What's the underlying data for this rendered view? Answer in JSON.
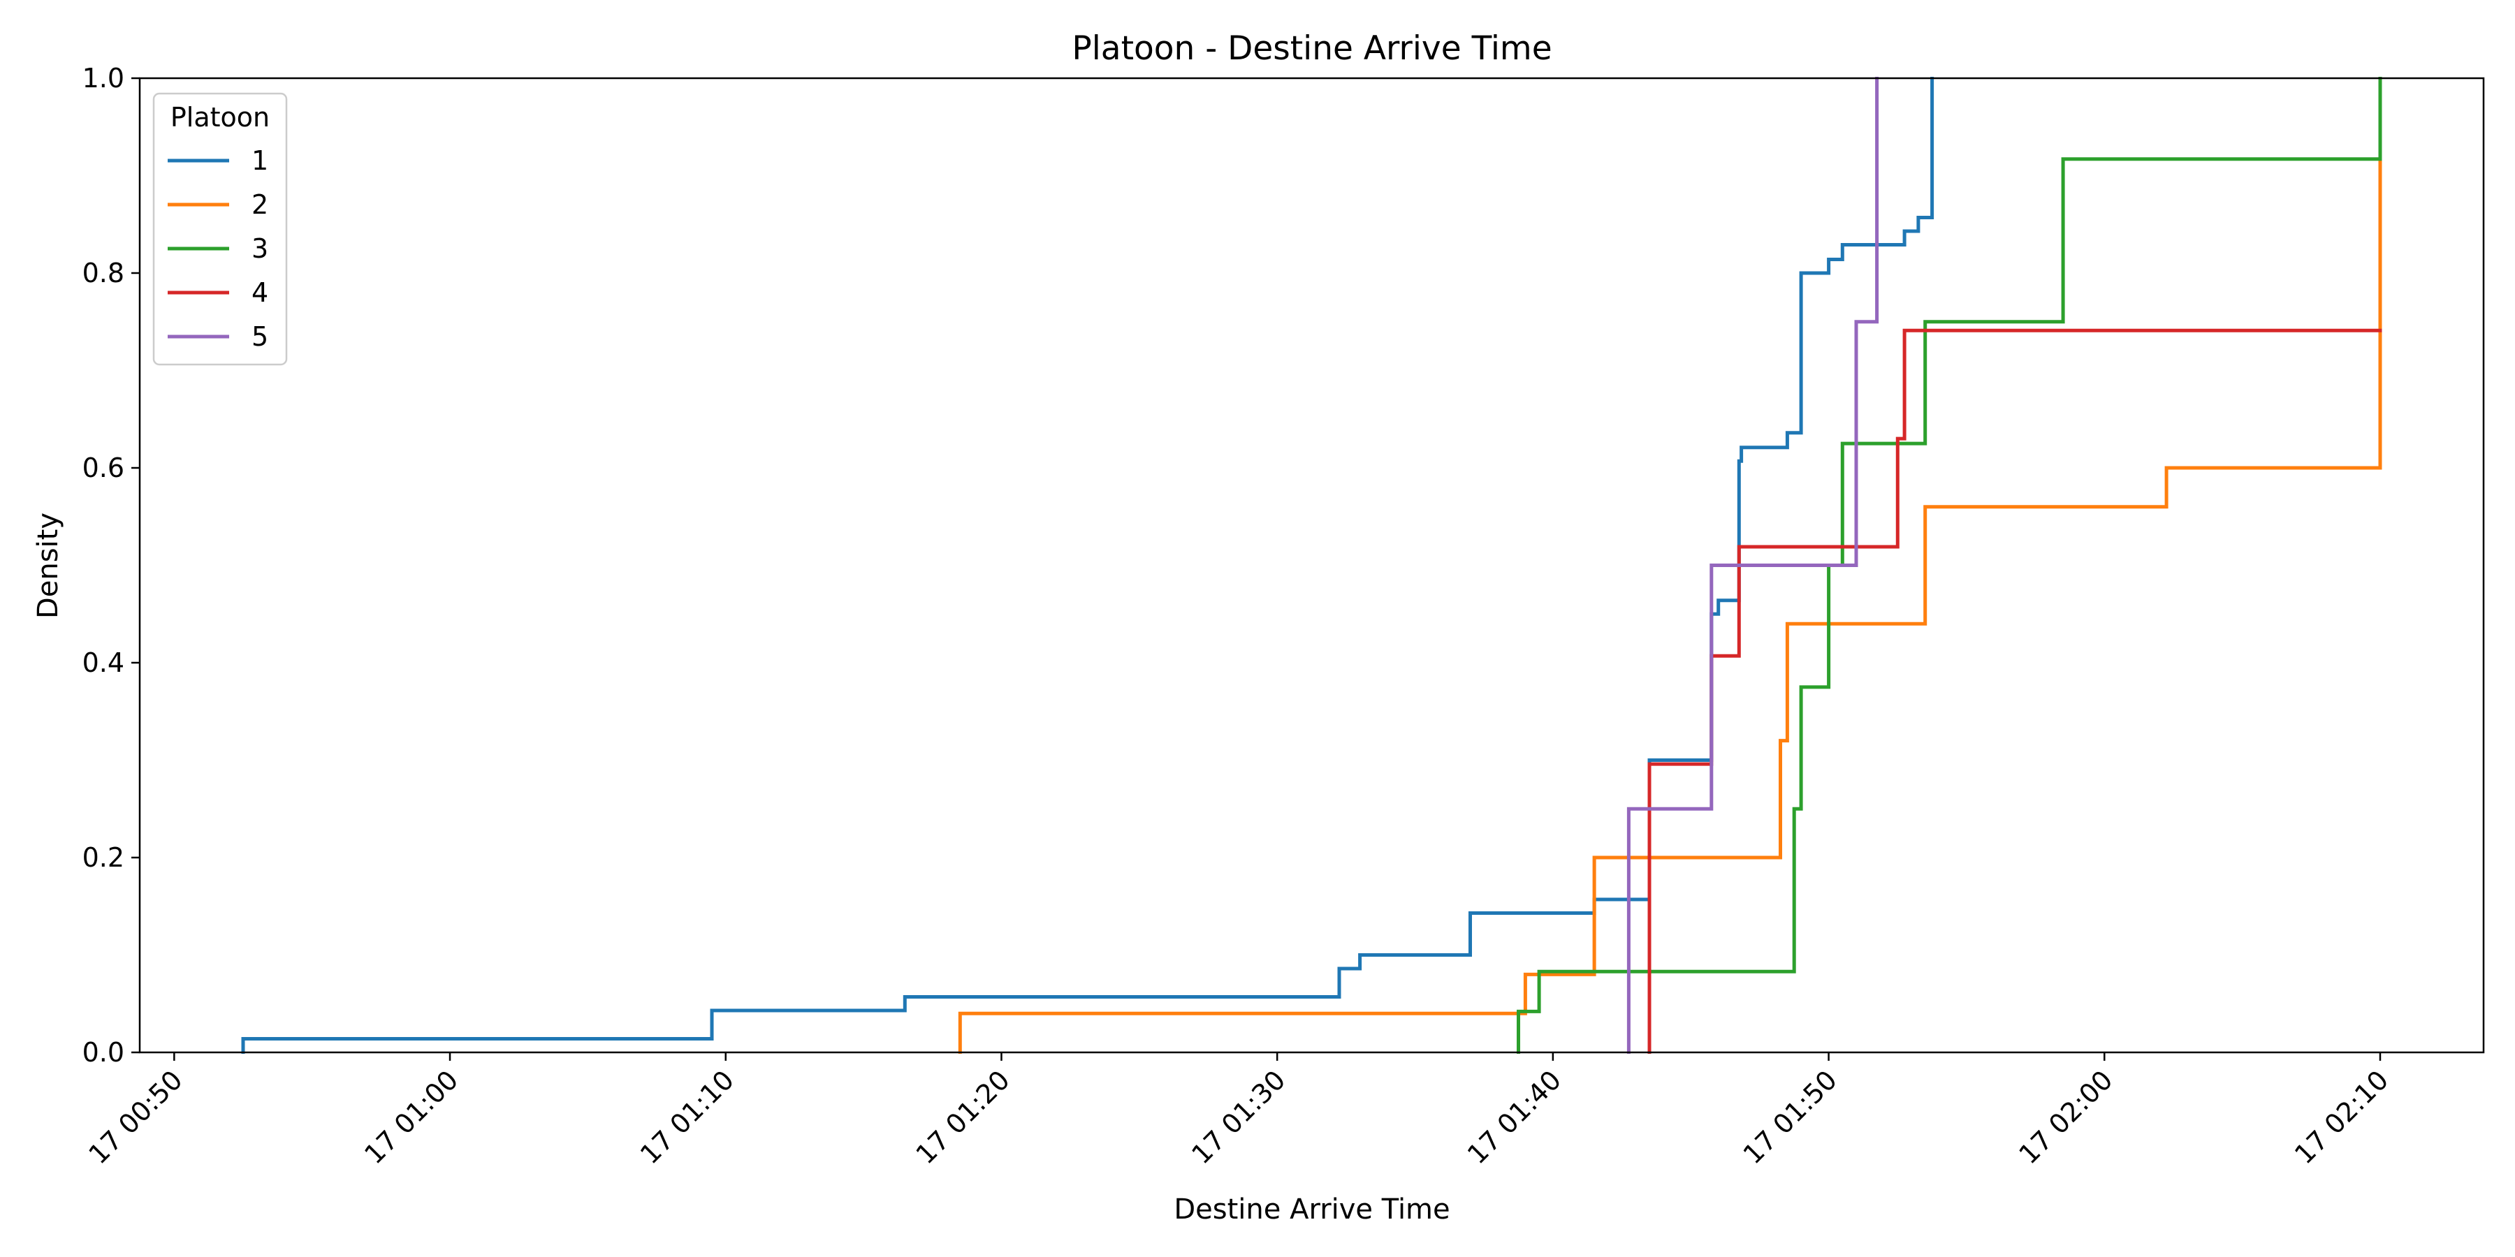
{
  "chart_data": {
    "type": "line",
    "step": "post",
    "title": "Platoon - Destine Arrive Time",
    "xlabel": "Destine Arrive Time",
    "ylabel": "Density",
    "x_unit": "time of day (17th), HH:MM:SS",
    "xlim": [
      "00:48:45",
      "02:13:45"
    ],
    "ylim": [
      0,
      1
    ],
    "x_ticks": [
      "00:50",
      "01:00",
      "01:10",
      "01:20",
      "01:30",
      "01:40",
      "01:50",
      "02:00",
      "02:10"
    ],
    "x_tick_labels": [
      "17 00:50",
      "17 01:00",
      "17 01:10",
      "17 01:20",
      "17 01:30",
      "17 01:40",
      "17 01:50",
      "17 02:00",
      "17 02:10"
    ],
    "y_ticks": [
      0.0,
      0.2,
      0.4,
      0.6,
      0.8,
      1.0
    ],
    "y_tick_labels": [
      "0.0",
      "0.2",
      "0.4",
      "0.6",
      "0.8",
      "1.0"
    ],
    "grid": false,
    "legend": {
      "title": "Platoon",
      "position": "top-left"
    },
    "series": [
      {
        "name": "1",
        "color": "#1f77b4",
        "points": [
          [
            "00:52:30",
            0.0
          ],
          [
            "00:52:30",
            0.014
          ],
          [
            "01:09:30",
            0.043
          ],
          [
            "01:16:30",
            0.057
          ],
          [
            "01:32:15",
            0.086
          ],
          [
            "01:33:00",
            0.1
          ],
          [
            "01:37:00",
            0.143
          ],
          [
            "01:41:30",
            0.157
          ],
          [
            "01:43:30",
            0.3
          ],
          [
            "01:45:45",
            0.45
          ],
          [
            "01:46:00",
            0.464
          ],
          [
            "01:46:45",
            0.607
          ],
          [
            "01:46:50",
            0.621
          ],
          [
            "01:48:30",
            0.636
          ],
          [
            "01:49:00",
            0.8
          ],
          [
            "01:50:00",
            0.814
          ],
          [
            "01:50:30",
            0.829
          ],
          [
            "01:52:45",
            0.843
          ],
          [
            "01:53:15",
            0.857
          ],
          [
            "01:53:45",
            1.0
          ]
        ]
      },
      {
        "name": "2",
        "color": "#ff7f0e",
        "points": [
          [
            "01:18:30",
            0.0
          ],
          [
            "01:18:30",
            0.04
          ],
          [
            "01:39:00",
            0.08
          ],
          [
            "01:41:30",
            0.2
          ],
          [
            "01:48:15",
            0.32
          ],
          [
            "01:48:30",
            0.44
          ],
          [
            "01:53:30",
            0.56
          ],
          [
            "02:02:15",
            0.6
          ],
          [
            "02:10:00",
            1.0
          ]
        ]
      },
      {
        "name": "3",
        "color": "#2ca02c",
        "points": [
          [
            "01:38:45",
            0.0
          ],
          [
            "01:38:45",
            0.042
          ],
          [
            "01:39:30",
            0.083
          ],
          [
            "01:48:45",
            0.25
          ],
          [
            "01:49:00",
            0.375
          ],
          [
            "01:50:00",
            0.5
          ],
          [
            "01:50:30",
            0.625
          ],
          [
            "01:53:30",
            0.75
          ],
          [
            "01:58:30",
            0.917
          ],
          [
            "02:10:00",
            1.0
          ]
        ]
      },
      {
        "name": "4",
        "color": "#d62728",
        "points": [
          [
            "01:43:30",
            0.0
          ],
          [
            "01:43:30",
            0.296
          ],
          [
            "01:45:45",
            0.407
          ],
          [
            "01:46:45",
            0.519
          ],
          [
            "01:52:30",
            0.63
          ],
          [
            "01:52:45",
            0.741
          ],
          [
            "02:10:00",
            0.741
          ]
        ]
      },
      {
        "name": "5",
        "color": "#9467bd",
        "points": [
          [
            "01:42:45",
            0.0
          ],
          [
            "01:42:45",
            0.25
          ],
          [
            "01:45:45",
            0.5
          ],
          [
            "01:51:00",
            0.75
          ],
          [
            "01:51:45",
            1.0
          ]
        ]
      }
    ]
  }
}
